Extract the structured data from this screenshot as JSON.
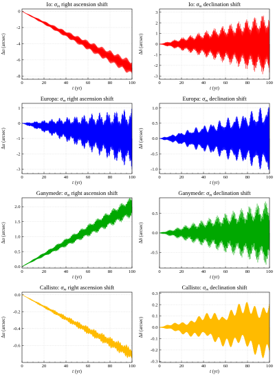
{
  "panels": [
    {
      "id": "io-ra",
      "title_prefix": "Io: ",
      "title_sym": "σ",
      "title_sub": "m",
      "title_rest": " right ascension shift",
      "ylabel_pre": "Δ",
      "ylabel_sym": "α",
      "ylabel_unit": " (arcsec)",
      "xlabel_sym": "t",
      "xlabel_unit": " (yr)",
      "color": "#ff0000",
      "xticks": [
        "0",
        "20",
        "40",
        "60",
        "80",
        "100"
      ],
      "yticks": [
        "0",
        "-2",
        "-4",
        "-6",
        "-8"
      ]
    },
    {
      "id": "io-dec",
      "title_prefix": "Io: ",
      "title_sym": "σ",
      "title_sub": "m",
      "title_rest": " declination shift",
      "ylabel_pre": "Δ",
      "ylabel_sym": "δ",
      "ylabel_unit": " (arcsec)",
      "xlabel_sym": "t",
      "xlabel_unit": " (yr)",
      "color": "#ff0000",
      "xticks": [
        "0",
        "20",
        "40",
        "60",
        "80",
        "100"
      ],
      "yticks": [
        "3",
        "2",
        "1",
        "0",
        "-1",
        "-2",
        "-3"
      ]
    },
    {
      "id": "europa-ra",
      "title_prefix": "Europa: ",
      "title_sym": "σ",
      "title_sub": "m",
      "title_rest": " right ascension shift",
      "ylabel_pre": "Δ",
      "ylabel_sym": "α",
      "ylabel_unit": " (arcsec)",
      "xlabel_sym": "t",
      "xlabel_unit": " (yr)",
      "color": "#0000ff",
      "xticks": [
        "0",
        "20",
        "40",
        "60",
        "80",
        "100"
      ],
      "yticks": [
        "1",
        "0",
        "-1",
        "-2",
        "-3"
      ]
    },
    {
      "id": "europa-dec",
      "title_prefix": "Europa: ",
      "title_sym": "σ",
      "title_sub": "m",
      "title_rest": " declination shift",
      "ylabel_pre": "Δ",
      "ylabel_sym": "δ",
      "ylabel_unit": " (arcsec)",
      "xlabel_sym": "t",
      "xlabel_unit": " (yr)",
      "color": "#0000ff",
      "xticks": [
        "0",
        "20",
        "40",
        "60",
        "80",
        "100"
      ],
      "yticks": [
        "1.0",
        "0.5",
        "0.0",
        "-0.5",
        "-1.0"
      ]
    },
    {
      "id": "ganymede-ra",
      "title_prefix": "Ganymede: ",
      "title_sym": "σ",
      "title_sub": "m",
      "title_rest": " right ascension shift",
      "ylabel_pre": "Δ",
      "ylabel_sym": "α",
      "ylabel_unit": " (arcsec)",
      "xlabel_sym": "t",
      "xlabel_unit": " (yr)",
      "color": "#00a800",
      "xticks": [
        "0",
        "20",
        "40",
        "60",
        "80",
        "100"
      ],
      "yticks": [
        "2.0",
        "1.5",
        "1.0",
        "0.5",
        "0.0"
      ]
    },
    {
      "id": "ganymede-dec",
      "title_prefix": "Ganymede: ",
      "title_sym": "σ",
      "title_sub": "m",
      "title_rest": " declination shift",
      "ylabel_pre": "Δ",
      "ylabel_sym": "δ",
      "ylabel_unit": " (arcsec)",
      "xlabel_sym": "t",
      "xlabel_unit": " (yr)",
      "color": "#00a800",
      "xticks": [
        "0",
        "20",
        "40",
        "60",
        "80",
        "100"
      ],
      "yticks": [
        "0.5",
        "0.0",
        "-0.5"
      ]
    },
    {
      "id": "callisto-ra",
      "title_prefix": "Callisto: ",
      "title_sym": "σ",
      "title_sub": "m",
      "title_rest": " right ascension shift",
      "ylabel_pre": "Δ",
      "ylabel_sym": "α",
      "ylabel_unit": " (arcsec)",
      "xlabel_sym": "t",
      "xlabel_unit": " (yr)",
      "color": "#ffbb00",
      "xticks": [
        "0",
        "20",
        "40",
        "60",
        "80",
        "100"
      ],
      "yticks": [
        "0.0",
        "-0.2",
        "-0.4",
        "-0.6"
      ]
    },
    {
      "id": "callisto-dec",
      "title_prefix": "Callisto: ",
      "title_sym": "σ",
      "title_sub": "m",
      "title_rest": " declination shift",
      "ylabel_pre": "Δ",
      "ylabel_sym": "δ",
      "ylabel_unit": " (arcsec)",
      "xlabel_sym": "t",
      "xlabel_unit": " (yr)",
      "color": "#ffbb00",
      "xticks": [
        "0",
        "20",
        "40",
        "60",
        "80",
        "100"
      ],
      "yticks": [
        "0.3",
        "0.2",
        "0.1",
        "0.0",
        "-0.1",
        "-0.2",
        "-0.3"
      ]
    }
  ],
  "chart_data": [
    {
      "type": "line",
      "panel": "io-ra",
      "xlim": [
        0,
        100
      ],
      "ylim": [
        -8.4,
        0.3
      ],
      "grid": true,
      "series": [
        {
          "color": "#ff0000",
          "x": [
            0,
            10,
            20,
            30,
            40,
            50,
            60,
            70,
            80,
            90,
            100
          ],
          "y": [
            0,
            -0.7,
            -1.4,
            -2.1,
            -2.8,
            -3.5,
            -4.2,
            -4.9,
            -5.6,
            -6.3,
            -7.0
          ],
          "oscillation_amplitude": [
            0,
            1.0
          ]
        }
      ]
    },
    {
      "type": "line",
      "panel": "io-dec",
      "xlim": [
        0,
        100
      ],
      "ylim": [
        -3.3,
        3.3
      ],
      "grid": true,
      "series": [
        {
          "color": "#ff0000",
          "x": [
            0,
            10,
            20,
            30,
            40,
            50,
            60,
            70,
            80,
            90,
            100
          ],
          "y": [
            0,
            0,
            0,
            0,
            0,
            0,
            0,
            0,
            0,
            0,
            0
          ],
          "oscillation_amplitude": [
            0,
            3.0
          ]
        }
      ]
    },
    {
      "type": "line",
      "panel": "europa-ra",
      "xlim": [
        0,
        100
      ],
      "ylim": [
        -3.3,
        1.3
      ],
      "grid": true,
      "series": [
        {
          "color": "#0000ff",
          "x": [
            0,
            10,
            20,
            30,
            40,
            50,
            60,
            70,
            80,
            90,
            100
          ],
          "y": [
            0,
            -0.1,
            -0.2,
            -0.3,
            -0.4,
            -0.5,
            -0.6,
            -0.7,
            -0.8,
            -0.9,
            -1.0
          ],
          "oscillation_amplitude": [
            0,
            2.0
          ]
        }
      ]
    },
    {
      "type": "line",
      "panel": "europa-dec",
      "xlim": [
        0,
        100
      ],
      "ylim": [
        -1.15,
        1.15
      ],
      "grid": true,
      "series": [
        {
          "color": "#0000ff",
          "x": [
            0,
            10,
            20,
            30,
            40,
            50,
            60,
            70,
            80,
            90,
            100
          ],
          "y": [
            0,
            0,
            0,
            0,
            0,
            0,
            0,
            0,
            0,
            0,
            0
          ],
          "oscillation_amplitude": [
            0,
            1.1
          ]
        }
      ]
    },
    {
      "type": "line",
      "panel": "ganymede-ra",
      "xlim": [
        0,
        100
      ],
      "ylim": [
        -0.05,
        2.3
      ],
      "grid": true,
      "series": [
        {
          "color": "#00a800",
          "x": [
            0,
            10,
            20,
            30,
            40,
            50,
            60,
            70,
            80,
            90,
            100
          ],
          "y": [
            0,
            0.2,
            0.4,
            0.6,
            0.8,
            1.0,
            1.2,
            1.4,
            1.6,
            1.8,
            2.0
          ],
          "oscillation_amplitude": [
            0,
            0.35
          ]
        }
      ]
    },
    {
      "type": "line",
      "panel": "ganymede-dec",
      "xlim": [
        0,
        100
      ],
      "ylim": [
        -0.9,
        0.9
      ],
      "grid": true,
      "series": [
        {
          "color": "#00a800",
          "x": [
            0,
            10,
            20,
            30,
            40,
            50,
            60,
            70,
            80,
            90,
            100
          ],
          "y": [
            0,
            0,
            0,
            0,
            0,
            0,
            0,
            0,
            0,
            0,
            0
          ],
          "oscillation_amplitude": [
            0,
            0.85
          ]
        }
      ]
    },
    {
      "type": "line",
      "panel": "callisto-ra",
      "xlim": [
        0,
        100
      ],
      "ylim": [
        -0.8,
        0.03
      ],
      "grid": true,
      "series": [
        {
          "color": "#ffbb00",
          "x": [
            0,
            10,
            20,
            30,
            40,
            50,
            60,
            70,
            80,
            90,
            100
          ],
          "y": [
            0,
            -0.07,
            -0.14,
            -0.21,
            -0.28,
            -0.35,
            -0.42,
            -0.49,
            -0.56,
            -0.63,
            -0.7
          ],
          "oscillation_amplitude": [
            0,
            0.08
          ]
        }
      ]
    },
    {
      "type": "line",
      "panel": "callisto-dec",
      "xlim": [
        0,
        100
      ],
      "ylim": [
        -0.31,
        0.31
      ],
      "grid": true,
      "series": [
        {
          "color": "#ffbb00",
          "x": [
            0,
            10,
            20,
            30,
            40,
            50,
            60,
            70,
            80,
            90,
            100
          ],
          "y": [
            0,
            0,
            0,
            0,
            0,
            0,
            0,
            0,
            0,
            0,
            0
          ],
          "oscillation_amplitude": [
            0,
            0.29
          ]
        }
      ]
    }
  ]
}
